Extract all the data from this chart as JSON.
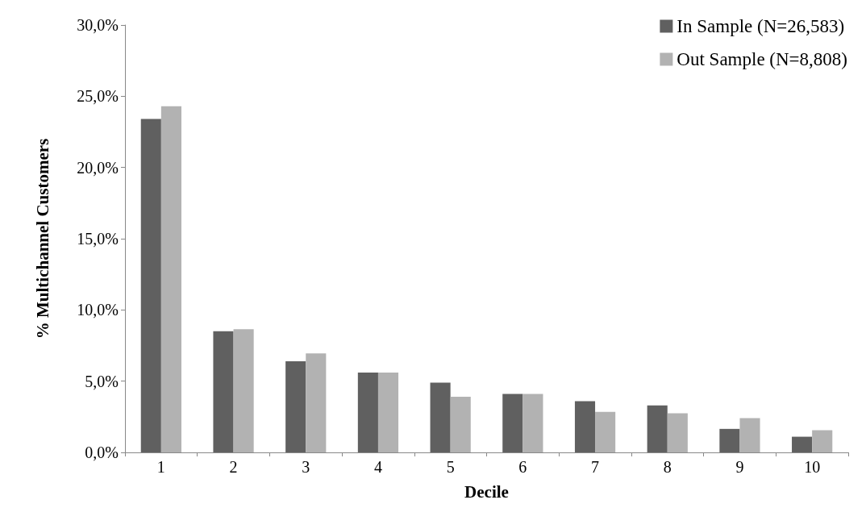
{
  "chart_data": {
    "type": "bar",
    "xlabel": "Decile",
    "ylabel": "% Multichannel Customers",
    "categories": [
      "1",
      "2",
      "3",
      "4",
      "5",
      "6",
      "7",
      "8",
      "9",
      "10"
    ],
    "series": [
      {
        "name": "In Sample (N=26,583)",
        "color": "#606060",
        "values": [
          23.4,
          8.5,
          6.4,
          5.6,
          4.9,
          4.1,
          3.6,
          3.3,
          1.65,
          1.1
        ]
      },
      {
        "name": "Out Sample (N=8,808)",
        "color": "#b2b2b2",
        "values": [
          24.3,
          8.65,
          6.95,
          5.6,
          3.9,
          4.1,
          2.85,
          2.75,
          2.4,
          1.55
        ]
      }
    ],
    "ylim": [
      0,
      30
    ],
    "yticks": [
      {
        "value": 0,
        "label": "0,0%"
      },
      {
        "value": 5,
        "label": "5,0%"
      },
      {
        "value": 10,
        "label": "10,0%"
      },
      {
        "value": 15,
        "label": "15,0%"
      },
      {
        "value": 20,
        "label": "20,0%"
      },
      {
        "value": 25,
        "label": "25,0%"
      },
      {
        "value": 30,
        "label": "30,0%"
      }
    ],
    "grid": false,
    "legend": "top right"
  }
}
